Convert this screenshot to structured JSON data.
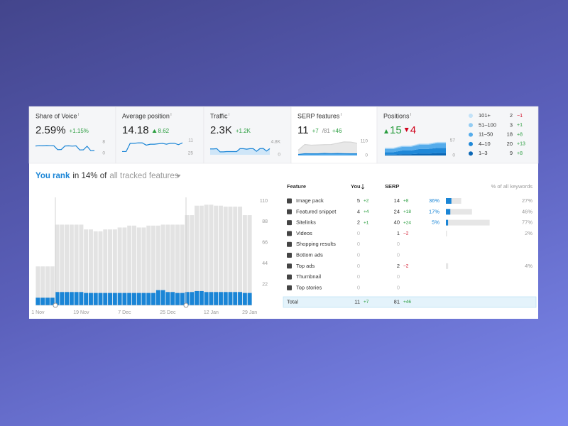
{
  "cards": {
    "share_of_voice": {
      "title": "Share of Voice",
      "value": "2.59%",
      "change": "+1.15%",
      "chart": {
        "ylim": [
          0,
          8
        ],
        "yticks": [
          8,
          0
        ],
        "series": [
          {
            "color": "#1a85d6",
            "values": [
              5.2,
              5.4,
              5.3,
              5.5,
              5.4,
              5.3,
              2.6,
              2.7,
              5.2,
              5.3,
              5.1,
              5.3,
              2.4,
              2.5,
              5.0,
              1.9,
              2.0
            ]
          }
        ]
      }
    },
    "average_position": {
      "title": "Average position",
      "value": "14.18",
      "change": "8.62",
      "chart": {
        "ylim": [
          25,
          11
        ],
        "yticks": [
          11,
          25
        ],
        "series": [
          {
            "color": "#1a85d6",
            "values": [
              23,
              23,
              14,
              14,
              13.5,
              13.5,
              16,
              15,
              15,
              14.5,
              14,
              15,
              14,
              14,
              15.5,
              13.5
            ]
          }
        ]
      }
    },
    "traffic": {
      "title": "Traffic",
      "value": "2.3K",
      "change": "+1.2K",
      "chart": {
        "ylim": [
          0,
          4800
        ],
        "yticks": [
          {
            "value": 4800,
            "label": "4.8K"
          },
          0
        ],
        "series": [
          {
            "color": "#1a85d6",
            "fill": "#cfe6f8",
            "values": [
              2200,
              2200,
              2300,
              1100,
              1100,
              1200,
              1200,
              1200,
              1200,
              2300,
              2300,
              2100,
              2300,
              2300,
              1300,
              2300,
              2400,
              1400,
              2300
            ]
          }
        ]
      }
    },
    "serp_features": {
      "title": "SERP features",
      "value": "11",
      "change": "+7",
      "total": "/81",
      "total_change": "+46",
      "chart": {
        "ylim": [
          0,
          110
        ],
        "yticks": [
          110,
          0
        ],
        "series": [
          {
            "color": "#d6d6d6",
            "fill": "#e8e8e8",
            "values": [
              41,
              85,
              80,
              82,
              84,
              85,
              95,
              105,
              104,
              95
            ]
          },
          {
            "color": "#1a85d6",
            "fill": "#4fa8ea",
            "values": [
              8,
              14,
              13,
              13,
              16,
              14,
              15,
              14,
              13,
              13
            ]
          }
        ]
      }
    },
    "positions": {
      "title": "Positions",
      "up": 15,
      "down": 4,
      "chart": {
        "ylim": [
          0,
          57
        ],
        "yticks": [
          57,
          0
        ]
      },
      "groups": [
        {
          "name": "101+",
          "color": "#c3e2f8",
          "count": 2,
          "change": "−1",
          "trend": [
            2,
            2,
            2,
            2,
            2,
            2,
            2,
            2
          ]
        },
        {
          "name": "51–100",
          "color": "#93ccf3",
          "count": 3,
          "change": "+1",
          "trend": [
            3,
            3,
            3,
            3,
            3,
            3,
            3,
            3
          ]
        },
        {
          "name": "11–50",
          "color": "#55aceb",
          "count": 18,
          "change": "+8",
          "trend": [
            12,
            12,
            14,
            14,
            16,
            16,
            18,
            18
          ]
        },
        {
          "name": "4–10",
          "color": "#1f88d8",
          "count": 20,
          "change": "+13",
          "trend": [
            10,
            10,
            14,
            14,
            18,
            18,
            20,
            20
          ]
        },
        {
          "name": "1–3",
          "color": "#0b67b5",
          "count": 9,
          "change": "+8",
          "trend": [
            3,
            3,
            5,
            5,
            7,
            7,
            9,
            9
          ]
        }
      ]
    }
  },
  "rank": [
    "You rank",
    "in 14% of",
    "all tracked features"
  ],
  "chart_data": {
    "type": "bar",
    "ylim": [
      0,
      110
    ],
    "yticks": [
      22,
      44,
      66,
      88,
      110
    ],
    "grid": false,
    "categories": [
      "1 Nov",
      null,
      null,
      null,
      null,
      null,
      null,
      null,
      null,
      "19 Nov",
      null,
      null,
      null,
      null,
      null,
      null,
      null,
      null,
      "7 Dec",
      null,
      null,
      null,
      null,
      null,
      null,
      null,
      null,
      "25 Dec",
      null,
      null,
      null,
      null,
      null,
      null,
      null,
      null,
      "12 Jan",
      null,
      null,
      null,
      null,
      null,
      null,
      null,
      "29 Jan"
    ],
    "series": [
      {
        "color": "#e3e3e3",
        "values": [
          41,
          41,
          41,
          41,
          85,
          85,
          85,
          85,
          85,
          85,
          80,
          80,
          78,
          78,
          80,
          80,
          80,
          82,
          82,
          84,
          84,
          82,
          82,
          84,
          84,
          84,
          85,
          85,
          85,
          85,
          85,
          95,
          95,
          105,
          105,
          106,
          106,
          105,
          105,
          104,
          104,
          104,
          104,
          95,
          95
        ]
      },
      {
        "color": "#1a85d6",
        "values": [
          8,
          8,
          8,
          8,
          14,
          14,
          14,
          14,
          14,
          14,
          13,
          13,
          13,
          13,
          13,
          13,
          13,
          13,
          13,
          13,
          13,
          13,
          13,
          13,
          13,
          16,
          16,
          14,
          14,
          13,
          13,
          14,
          14,
          15,
          15,
          14,
          14,
          14,
          14,
          14,
          14,
          14,
          14,
          13,
          13
        ]
      }
    ]
  },
  "table": {
    "columns": [
      "Feature",
      "You",
      "SERP",
      "% of all keywords"
    ],
    "rows": [
      {
        "feature": "Image pack",
        "you": 5,
        "you_change": "+2",
        "serp": 14,
        "serp_change": "+8",
        "you_share": {
          "value": 36,
          "label": "36%"
        },
        "serp_share": {
          "value": 27,
          "label": "27%"
        }
      },
      {
        "feature": "Featured snippet",
        "you": 4,
        "you_change": "+4",
        "serp": 24,
        "serp_change": "+18",
        "you_share": {
          "value": 17,
          "label": "17%"
        },
        "serp_share": {
          "value": 46,
          "label": "46%"
        }
      },
      {
        "feature": "Sitelinks",
        "you": 2,
        "you_change": "+1",
        "serp": 40,
        "serp_change": "+24",
        "you_share": {
          "value": 5,
          "label": "5%"
        },
        "serp_share": {
          "value": 77,
          "label": "77%"
        }
      },
      {
        "feature": "Videos",
        "you": 0,
        "serp": 1,
        "serp_change": "−2",
        "serp_share": {
          "value": 2,
          "label": "2%"
        }
      },
      {
        "feature": "Shopping results",
        "you": 0,
        "serp": 0
      },
      {
        "feature": "Bottom ads",
        "you": 0,
        "serp": 0
      },
      {
        "feature": "Top ads",
        "you": 0,
        "serp": 2,
        "serp_change": "−2",
        "serp_share": {
          "value": 4,
          "label": "4%"
        }
      },
      {
        "feature": "Thumbnail",
        "you": 0,
        "serp": 0
      },
      {
        "feature": "Top stories",
        "you": 0,
        "serp": 0
      }
    ],
    "total": {
      "label": "Total",
      "you": 11,
      "you_change": "+7",
      "serp": 81,
      "serp_change": "+46"
    }
  }
}
